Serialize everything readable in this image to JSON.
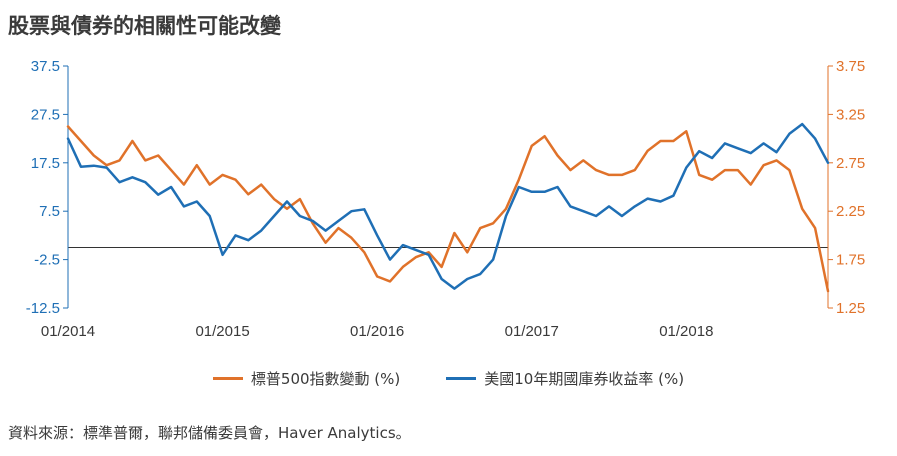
{
  "title": "股票與債券的相關性可能改變",
  "source": "資料來源：標準普爾，聯邦儲備委員會，Haver Analytics。",
  "colors": {
    "sp500": "#e0722a",
    "treasury": "#1f6fb5",
    "axis": "#333333"
  },
  "chart_data": {
    "type": "line",
    "x_ticks": [
      "01/2014",
      "01/2015",
      "01/2016",
      "01/2017",
      "01/2018"
    ],
    "x_range": [
      "2014-01",
      "2018-12"
    ],
    "left_axis": {
      "ticks": [
        "37.5",
        "27.5",
        "17.5",
        "7.5",
        "-2.5",
        "-12.5"
      ],
      "ylim": [
        -12.5,
        37.5
      ]
    },
    "right_axis": {
      "ticks": [
        "3.75",
        "3.25",
        "2.75",
        "2.25",
        "1.75",
        "1.25"
      ],
      "ylim": [
        1.25,
        3.75
      ]
    },
    "reference_line_left": 0,
    "legend_position": "bottom",
    "series": [
      {
        "name": "標普500指數變動 (%)",
        "axis": "left",
        "color": "#e0722a",
        "x": [
          "2014-01",
          "2014-02",
          "2014-03",
          "2014-04",
          "2014-05",
          "2014-06",
          "2014-07",
          "2014-08",
          "2014-09",
          "2014-10",
          "2014-11",
          "2014-12",
          "2015-01",
          "2015-02",
          "2015-03",
          "2015-04",
          "2015-05",
          "2015-06",
          "2015-07",
          "2015-08",
          "2015-09",
          "2015-10",
          "2015-11",
          "2015-12",
          "2016-01",
          "2016-02",
          "2016-03",
          "2016-04",
          "2016-05",
          "2016-06",
          "2016-07",
          "2016-08",
          "2016-09",
          "2016-10",
          "2016-11",
          "2016-12",
          "2017-01",
          "2017-02",
          "2017-03",
          "2017-04",
          "2017-05",
          "2017-06",
          "2017-07",
          "2017-08",
          "2017-09",
          "2017-10",
          "2017-11",
          "2017-12",
          "2018-01",
          "2018-02",
          "2018-03",
          "2018-04",
          "2018-05",
          "2018-06",
          "2018-07",
          "2018-08",
          "2018-09",
          "2018-10",
          "2018-11",
          "2018-12"
        ],
        "values": [
          25,
          22,
          19,
          17,
          18,
          22,
          18,
          19,
          16,
          13,
          17,
          13,
          15,
          14,
          11,
          13,
          10,
          8,
          10,
          5,
          1,
          4,
          2,
          -1,
          -6,
          -7,
          -4,
          -2,
          -1,
          -4,
          3,
          -1,
          4,
          5,
          8,
          14,
          21,
          23,
          19,
          16,
          18,
          16,
          15,
          15,
          16,
          20,
          22,
          22,
          24,
          15,
          14,
          16,
          16,
          13,
          17,
          18,
          16,
          8,
          4,
          -9
        ]
      },
      {
        "name": "美國10年期國庫券收益率 (%)",
        "axis": "right",
        "color": "#1f6fb5",
        "x": [
          "2014-01",
          "2014-02",
          "2014-03",
          "2014-04",
          "2014-05",
          "2014-06",
          "2014-07",
          "2014-08",
          "2014-09",
          "2014-10",
          "2014-11",
          "2014-12",
          "2015-01",
          "2015-02",
          "2015-03",
          "2015-04",
          "2015-05",
          "2015-06",
          "2015-07",
          "2015-08",
          "2015-09",
          "2015-10",
          "2015-11",
          "2015-12",
          "2016-01",
          "2016-02",
          "2016-03",
          "2016-04",
          "2016-05",
          "2016-06",
          "2016-07",
          "2016-08",
          "2016-09",
          "2016-10",
          "2016-11",
          "2016-12",
          "2017-01",
          "2017-02",
          "2017-03",
          "2017-04",
          "2017-05",
          "2017-06",
          "2017-07",
          "2017-08",
          "2017-09",
          "2017-10",
          "2017-11",
          "2017-12",
          "2018-01",
          "2018-02",
          "2018-03",
          "2018-04",
          "2018-05",
          "2018-06",
          "2018-07",
          "2018-08",
          "2018-09",
          "2018-10",
          "2018-11",
          "2018-12"
        ],
        "values": [
          3.0,
          2.71,
          2.72,
          2.7,
          2.55,
          2.6,
          2.55,
          2.42,
          2.5,
          2.3,
          2.35,
          2.2,
          1.8,
          2.0,
          1.95,
          2.05,
          2.2,
          2.35,
          2.2,
          2.15,
          2.05,
          2.15,
          2.25,
          2.27,
          2.0,
          1.75,
          1.9,
          1.85,
          1.8,
          1.55,
          1.45,
          1.55,
          1.6,
          1.75,
          2.2,
          2.5,
          2.45,
          2.45,
          2.5,
          2.3,
          2.25,
          2.2,
          2.3,
          2.2,
          2.3,
          2.38,
          2.35,
          2.41,
          2.7,
          2.87,
          2.8,
          2.95,
          2.9,
          2.85,
          2.95,
          2.86,
          3.05,
          3.15,
          3.0,
          2.75
        ]
      }
    ]
  }
}
